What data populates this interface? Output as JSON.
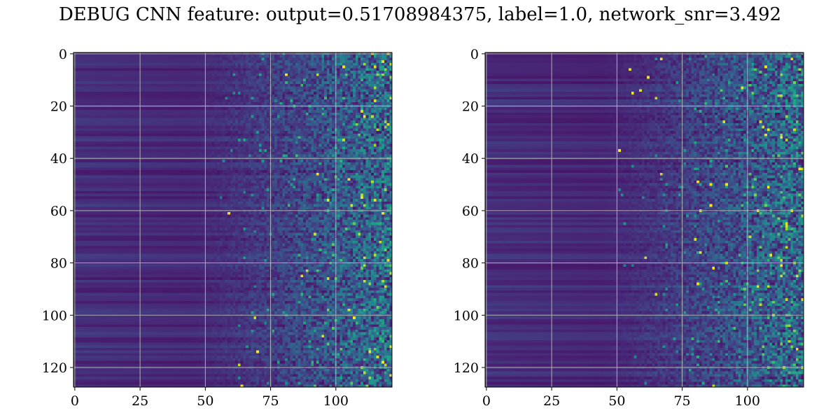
{
  "title": "DEBUG CNN feature: output=0.51708984375, label=1.0, network_snr=3.492",
  "chart_data": [
    {
      "type": "heatmap",
      "panel": "left",
      "colormap": "viridis",
      "n_rows": 128,
      "n_cols": 122,
      "xlim": [
        -0.5,
        121.5
      ],
      "ylim": [
        127.5,
        -0.5
      ],
      "xticks": [
        0,
        25,
        50,
        75,
        100
      ],
      "yticks": [
        0,
        20,
        40,
        60,
        80,
        100,
        120
      ],
      "grid": true,
      "grid_color": "#b0b0b0",
      "value_range": [
        0,
        1
      ],
      "texture_seed": 11
    },
    {
      "type": "heatmap",
      "panel": "right",
      "colormap": "viridis",
      "n_rows": 128,
      "n_cols": 122,
      "xlim": [
        -0.5,
        121.5
      ],
      "ylim": [
        127.5,
        -0.5
      ],
      "xticks": [
        0,
        25,
        50,
        75,
        100
      ],
      "yticks": [
        0,
        20,
        40,
        60,
        80,
        100,
        120
      ],
      "grid": true,
      "grid_color": "#b0b0b0",
      "value_range": [
        0,
        1
      ],
      "texture_seed": 29
    }
  ]
}
